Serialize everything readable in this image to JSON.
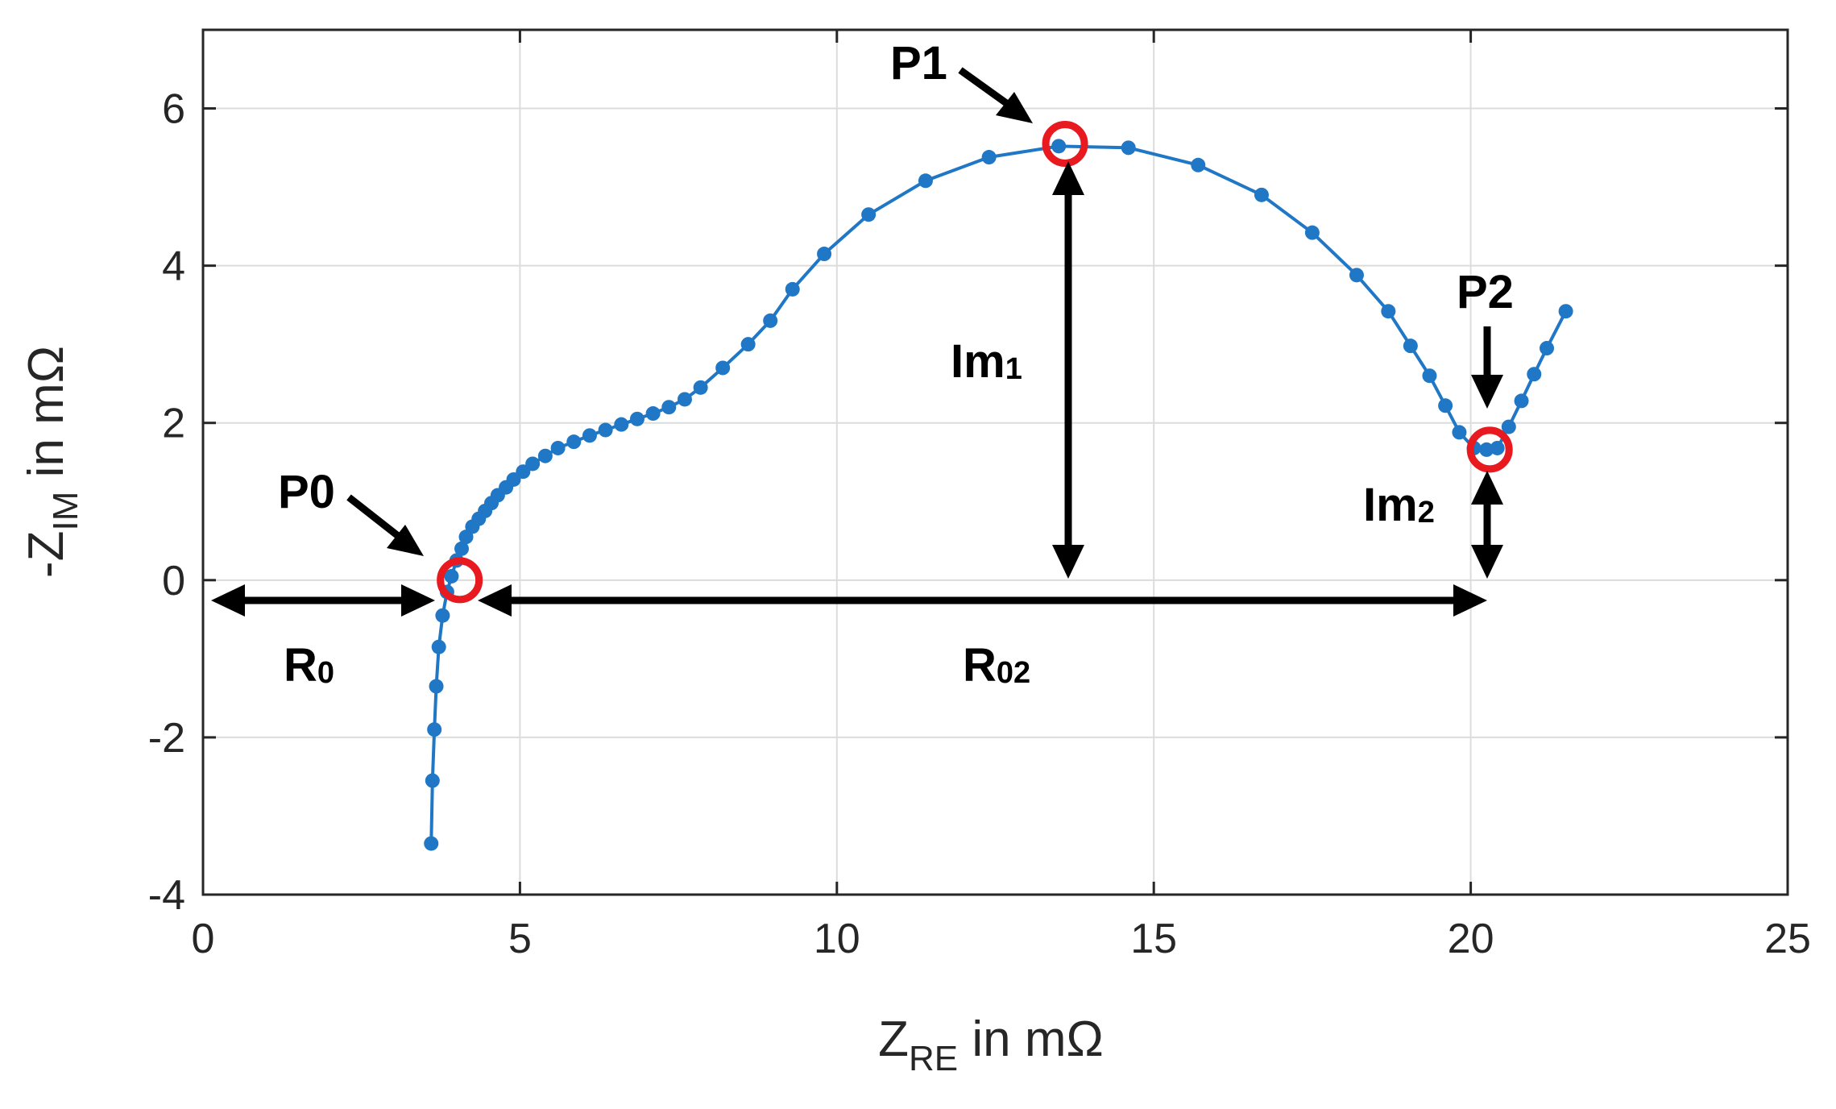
{
  "chart_data": {
    "type": "line",
    "title": "",
    "xlabel": {
      "main": "Z",
      "sub": "RE",
      "suffix": " in mΩ"
    },
    "ylabel": {
      "prefix": "-Z",
      "sub": "IM",
      "suffix": " in mΩ"
    },
    "xlim": [
      0,
      25
    ],
    "ylim": [
      -4,
      7
    ],
    "xticks": [
      0,
      5,
      10,
      15,
      20,
      25
    ],
    "yticks": [
      -4,
      -2,
      0,
      2,
      4,
      6
    ],
    "xtick_labels": [
      "0",
      "5",
      "10",
      "15",
      "20",
      "25"
    ],
    "ytick_labels": [
      "-4",
      "-2",
      "0",
      "2",
      "4",
      "6"
    ],
    "grid": true,
    "colors": {
      "series": "#1f77c6",
      "marker_ring": "#e8191f",
      "annotation": "#000000"
    },
    "series": [
      {
        "name": "impedance",
        "x": [
          3.6,
          3.62,
          3.65,
          3.68,
          3.72,
          3.78,
          3.85,
          3.92,
          4.0,
          4.08,
          4.15,
          4.25,
          4.35,
          4.45,
          4.55,
          4.65,
          4.78,
          4.9,
          5.05,
          5.2,
          5.4,
          5.6,
          5.85,
          6.1,
          6.35,
          6.6,
          6.85,
          7.1,
          7.35,
          7.6,
          7.85,
          8.2,
          8.6,
          8.95,
          9.3,
          9.8,
          10.5,
          11.4,
          12.4,
          13.5,
          14.6,
          15.7,
          16.7,
          17.5,
          18.2,
          18.7,
          19.05,
          19.35,
          19.6,
          19.82,
          20.05,
          20.25,
          20.42,
          20.6,
          20.8,
          21.0,
          21.2,
          21.5
        ],
        "y": [
          -3.35,
          -2.55,
          -1.9,
          -1.35,
          -0.85,
          -0.45,
          -0.15,
          0.05,
          0.25,
          0.4,
          0.55,
          0.68,
          0.78,
          0.88,
          0.98,
          1.08,
          1.18,
          1.28,
          1.38,
          1.48,
          1.58,
          1.68,
          1.76,
          1.84,
          1.91,
          1.98,
          2.05,
          2.12,
          2.2,
          2.3,
          2.45,
          2.7,
          3.0,
          3.3,
          3.7,
          4.15,
          4.65,
          5.08,
          5.38,
          5.52,
          5.5,
          5.28,
          4.9,
          4.42,
          3.88,
          3.42,
          2.98,
          2.6,
          2.22,
          1.88,
          1.68,
          1.66,
          1.68,
          1.95,
          2.28,
          2.62,
          2.95,
          3.42
        ]
      }
    ],
    "highlight_points": [
      {
        "name": "P0",
        "x": 4.05,
        "y": 0.0
      },
      {
        "name": "P1",
        "x": 13.6,
        "y": 5.55
      },
      {
        "name": "P2",
        "x": 20.3,
        "y": 1.66
      }
    ],
    "annotations": {
      "P0": "P0",
      "P1": "P1",
      "P2": "P2",
      "R0": {
        "main": "R",
        "sub": "0"
      },
      "R02": {
        "main": "R",
        "sub": "02"
      },
      "Im1": {
        "main": "Im",
        "sub": "1"
      },
      "Im2": {
        "main": "Im",
        "sub": "2"
      }
    }
  }
}
